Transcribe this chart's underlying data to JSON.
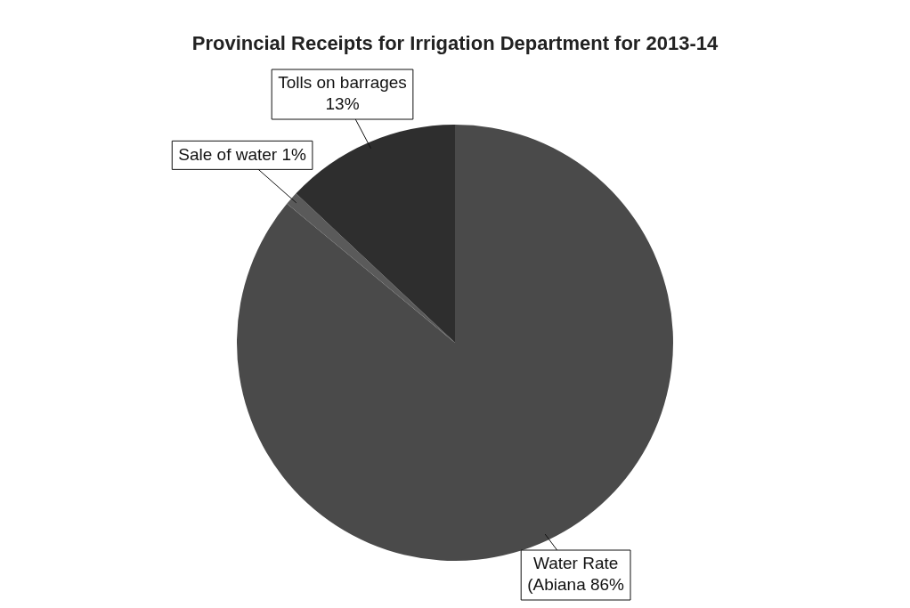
{
  "chart_data": {
    "type": "pie",
    "title": "Provincial Receipts for Irrigation Department for 2013-14",
    "categories": [
      "Water Rate (Abiana",
      "Sale of water",
      "Tolls on barrages"
    ],
    "values": [
      86,
      1,
      13
    ],
    "value_labels": [
      "86%",
      "1%",
      "13%"
    ],
    "colors": [
      "#4a4a4a",
      "#5a5a5a",
      "#2e2e2e"
    ],
    "legend": false
  }
}
